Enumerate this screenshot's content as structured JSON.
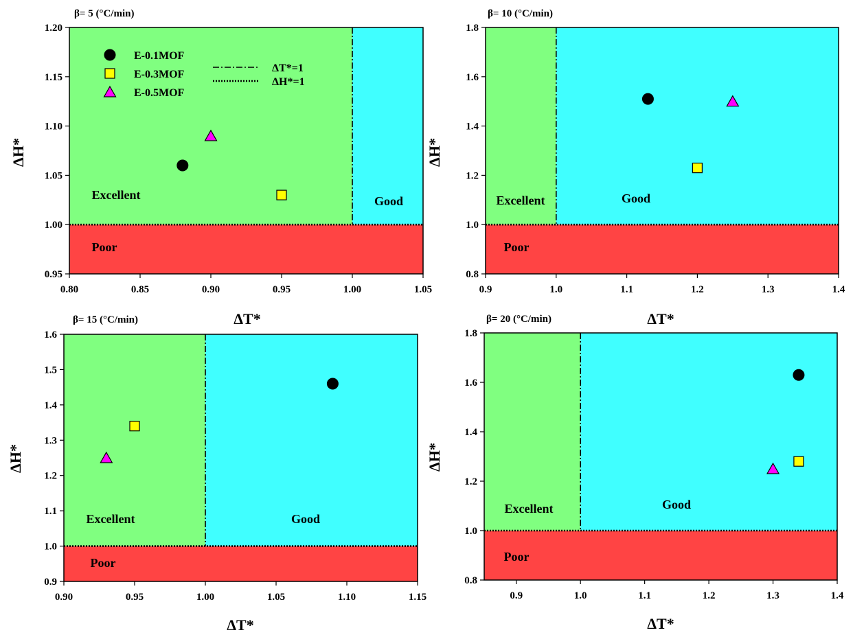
{
  "colors": {
    "excellent": "#80FF80",
    "good": "#40FFFF",
    "poor": "#FF4444",
    "E-0.1MOF": "#000000",
    "E-0.3MOF": "#FFFF00",
    "E-0.5MOF": "#FF00FF"
  },
  "legend": {
    "series": [
      {
        "name": "E-0.1MOF",
        "marker": "circle"
      },
      {
        "name": "E-0.3MOF",
        "marker": "square"
      },
      {
        "name": "E-0.5MOF",
        "marker": "triangle"
      }
    ],
    "lines": [
      {
        "label": "ΔT*=1",
        "style": "dash-dot"
      },
      {
        "label": "ΔH*=1",
        "style": "dotted"
      }
    ]
  },
  "region_labels": {
    "excellent": "Excellent",
    "good": "Good",
    "poor": "Poor"
  },
  "chart_data": [
    {
      "type": "scatter",
      "title": "β= 5 (°C/min)",
      "xlabel": "ΔT*",
      "ylabel": "ΔH*",
      "xlim": [
        0.8,
        1.05
      ],
      "ylim": [
        0.95,
        1.2
      ],
      "xticks": [
        "0.80",
        "0.85",
        "0.90",
        "0.95",
        "1.00",
        "1.05"
      ],
      "yticks": [
        "0.95",
        "1.00",
        "1.05",
        "1.10",
        "1.15",
        "1.20"
      ],
      "series": [
        {
          "name": "E-0.1MOF",
          "x": [
            0.88
          ],
          "y": [
            1.06
          ]
        },
        {
          "name": "E-0.3MOF",
          "x": [
            0.95
          ],
          "y": [
            1.03
          ]
        },
        {
          "name": "E-0.5MOF",
          "x": [
            0.9
          ],
          "y": [
            1.09
          ]
        }
      ]
    },
    {
      "type": "scatter",
      "title": "β= 10 (°C/min)",
      "xlabel": "ΔT*",
      "ylabel": "ΔH*",
      "xlim": [
        0.9,
        1.4
      ],
      "ylim": [
        0.8,
        1.8
      ],
      "xticks": [
        "0.9",
        "1.0",
        "1.1",
        "1.2",
        "1.3",
        "1.4"
      ],
      "yticks": [
        "0.8",
        "1.0",
        "1.2",
        "1.4",
        "1.6",
        "1.8"
      ],
      "series": [
        {
          "name": "E-0.1MOF",
          "x": [
            1.13
          ],
          "y": [
            1.51
          ]
        },
        {
          "name": "E-0.3MOF",
          "x": [
            1.2
          ],
          "y": [
            1.23
          ]
        },
        {
          "name": "E-0.5MOF",
          "x": [
            1.25
          ],
          "y": [
            1.5
          ]
        }
      ]
    },
    {
      "type": "scatter",
      "title": "β= 15 (°C/min)",
      "xlabel": "ΔT*",
      "ylabel": "ΔH*",
      "xlim": [
        0.9,
        1.15
      ],
      "ylim": [
        0.9,
        1.6
      ],
      "xticks": [
        "0.90",
        "0.95",
        "1.00",
        "1.05",
        "1.10",
        "1.15"
      ],
      "yticks": [
        "0.9",
        "1.0",
        "1.1",
        "1.2",
        "1.3",
        "1.4",
        "1.5",
        "1.6"
      ],
      "series": [
        {
          "name": "E-0.1MOF",
          "x": [
            1.09
          ],
          "y": [
            1.46
          ]
        },
        {
          "name": "E-0.3MOF",
          "x": [
            0.95
          ],
          "y": [
            1.34
          ]
        },
        {
          "name": "E-0.5MOF",
          "x": [
            0.93
          ],
          "y": [
            1.25
          ]
        }
      ]
    },
    {
      "type": "scatter",
      "title": "β= 20 (°C/min)",
      "xlabel": "ΔT*",
      "ylabel": "ΔH*",
      "xlim": [
        0.85,
        1.4
      ],
      "ylim": [
        0.8,
        1.8
      ],
      "xticks": [
        "0.9",
        "1.0",
        "1.1",
        "1.2",
        "1.3",
        "1.4"
      ],
      "yticks": [
        "0.8",
        "1.0",
        "1.2",
        "1.4",
        "1.6",
        "1.8"
      ],
      "series": [
        {
          "name": "E-0.1MOF",
          "x": [
            1.34
          ],
          "y": [
            1.63
          ]
        },
        {
          "name": "E-0.3MOF",
          "x": [
            1.34
          ],
          "y": [
            1.28
          ]
        },
        {
          "name": "E-0.5MOF",
          "x": [
            1.3
          ],
          "y": [
            1.25
          ]
        }
      ]
    }
  ]
}
